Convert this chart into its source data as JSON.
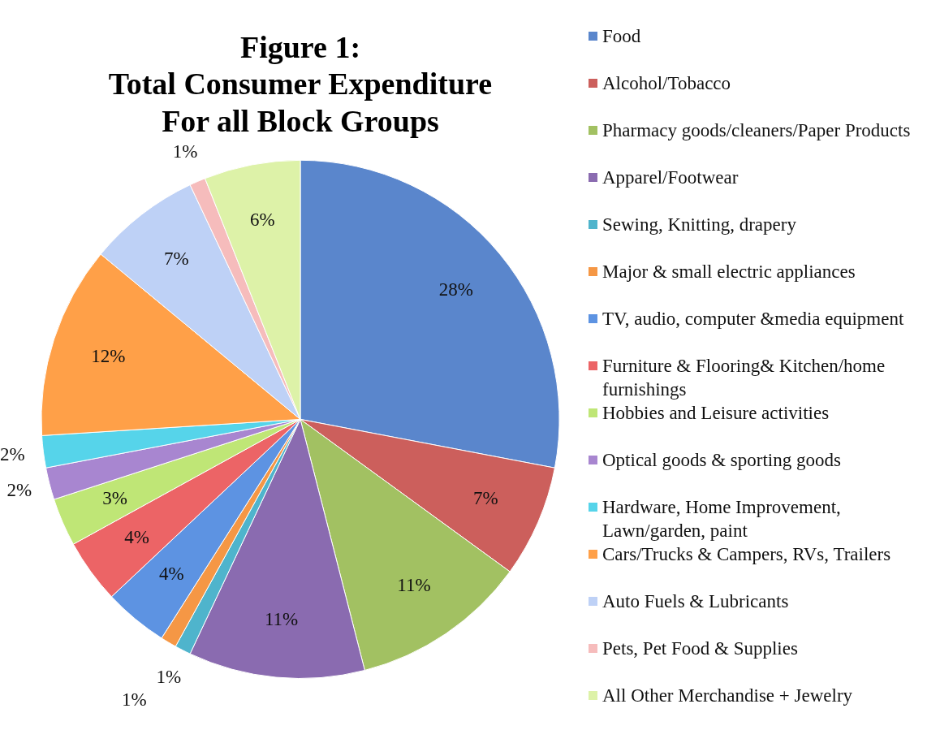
{
  "chart_data": {
    "type": "pie",
    "title": "Figure 1:\nTotal Consumer Expenditure\nFor all Block Groups",
    "categories": [
      "Food",
      "Alcohol/Tobacco",
      "Pharmacy goods/cleaners/Paper Products",
      "Apparel/Footwear",
      "Sewing, Knitting, drapery",
      "Major & small electric appliances",
      "TV, audio, computer &media equipment",
      "Furniture & Flooring& Kitchen/home furnishings",
      "Hobbies and Leisure activities",
      "Optical goods & sporting goods",
      "Hardware, Home Improvement, Lawn/garden, paint",
      "Cars/Trucks & Campers, RVs, Trailers",
      "Auto Fuels & Lubricants",
      "Pets, Pet Food & Supplies",
      "All Other Merchandise + Jewelry"
    ],
    "values": [
      28,
      7,
      11,
      11,
      1,
      1,
      4,
      4,
      3,
      2,
      2,
      12,
      7,
      1,
      6
    ],
    "value_labels": [
      "28%",
      "7%",
      "11%",
      "11%",
      "1%",
      "1%",
      "4%",
      "4%",
      "3%",
      "2%",
      "2%",
      "12%",
      "7%",
      "1%",
      "6%"
    ],
    "colors": [
      "#5a86cc",
      "#cc5f5c",
      "#a2c162",
      "#8a6bb0",
      "#4fb4cc",
      "#f59745",
      "#5d93e2",
      "#ec6466",
      "#bfe676",
      "#a886d0",
      "#56d4ea",
      "#ffa048",
      "#bed1f6",
      "#f6bcbc",
      "#ddf2a8"
    ],
    "legend": "right"
  }
}
